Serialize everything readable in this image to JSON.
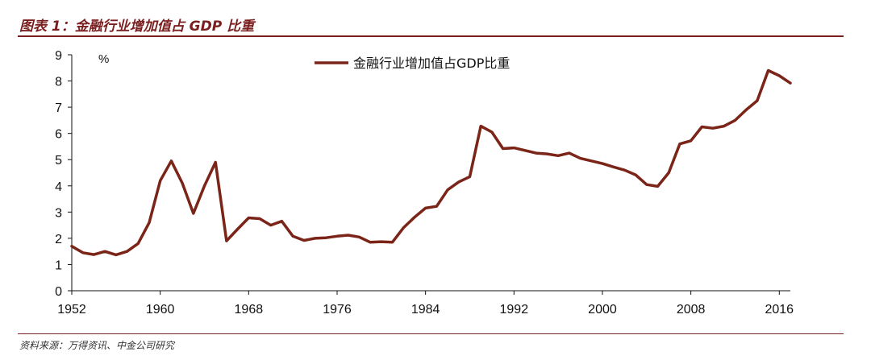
{
  "figure": {
    "title": "图表 1：金融行业增加值占 GDP 比重",
    "source": "资料来源：万得资讯、中金公司研究"
  },
  "colors": {
    "accent": "#7a1f1f",
    "series": "#7b2418"
  },
  "chart_data": {
    "type": "line",
    "ylabel": "%",
    "ylim": [
      0,
      9
    ],
    "yticks": [
      0,
      1,
      2,
      3,
      4,
      5,
      6,
      7,
      8,
      9
    ],
    "xlim": [
      1952,
      2017
    ],
    "xticks": [
      1952,
      1960,
      1968,
      1976,
      1984,
      1992,
      2000,
      2008,
      2016
    ],
    "grid": false,
    "legend": "top-center",
    "series": [
      {
        "name": "金融行业增加值占GDP比重",
        "x": [
          1952,
          1953,
          1954,
          1955,
          1956,
          1957,
          1958,
          1959,
          1960,
          1961,
          1962,
          1963,
          1964,
          1965,
          1966,
          1967,
          1968,
          1969,
          1970,
          1971,
          1972,
          1973,
          1974,
          1975,
          1976,
          1977,
          1978,
          1979,
          1980,
          1981,
          1982,
          1983,
          1984,
          1985,
          1986,
          1987,
          1988,
          1989,
          1990,
          1991,
          1992,
          1993,
          1994,
          1995,
          1996,
          1997,
          1998,
          1999,
          2000,
          2001,
          2002,
          2003,
          2004,
          2005,
          2006,
          2007,
          2008,
          2009,
          2010,
          2011,
          2012,
          2013,
          2014,
          2015,
          2016,
          2017
        ],
        "values": [
          1.7,
          1.45,
          1.38,
          1.5,
          1.37,
          1.5,
          1.8,
          2.6,
          4.2,
          4.95,
          4.1,
          2.95,
          4.0,
          4.9,
          1.9,
          2.35,
          2.78,
          2.75,
          2.5,
          2.65,
          2.08,
          1.92,
          2.0,
          2.02,
          2.08,
          2.12,
          2.05,
          1.85,
          1.87,
          1.85,
          2.4,
          2.8,
          3.15,
          3.22,
          3.85,
          4.15,
          4.35,
          6.28,
          6.05,
          5.42,
          5.45,
          5.35,
          5.25,
          5.22,
          5.15,
          5.25,
          5.05,
          4.95,
          4.85,
          4.72,
          4.6,
          4.42,
          4.05,
          3.98,
          4.5,
          5.6,
          5.72,
          6.25,
          6.2,
          6.28,
          6.5,
          6.9,
          7.25,
          8.4,
          8.2,
          7.92
        ]
      }
    ]
  }
}
